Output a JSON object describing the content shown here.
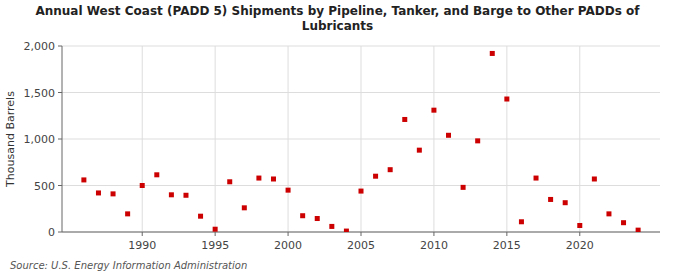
{
  "chart_data": {
    "type": "scatter",
    "title": "Annual West Coast (PADD 5) Shipments by Pipeline, Tanker, and Barge to Other PADDs of\nLubricants",
    "ylabel": "Thousand Barrels",
    "annotations": [
      "Source: U.S. Energy Information Administration"
    ],
    "x": [
      1986,
      1987,
      1988,
      1989,
      1990,
      1991,
      1992,
      1993,
      1994,
      1995,
      1996,
      1997,
      1998,
      1999,
      2000,
      2001,
      2002,
      2003,
      2004,
      2005,
      2006,
      2007,
      2008,
      2009,
      2010,
      2011,
      2012,
      2013,
      2014,
      2015,
      2016,
      2017,
      2018,
      2019,
      2020,
      2021,
      2022,
      2023,
      2024
    ],
    "values": [
      560,
      420,
      410,
      195,
      500,
      615,
      400,
      395,
      170,
      30,
      540,
      260,
      580,
      570,
      450,
      175,
      145,
      60,
      10,
      440,
      600,
      670,
      1210,
      880,
      1310,
      1040,
      480,
      980,
      1920,
      1430,
      110,
      580,
      350,
      315,
      70,
      570,
      195,
      100,
      20
    ],
    "color": "#cc0000",
    "marker": "square",
    "xlim": [
      1984.5,
      2025.5
    ],
    "xticks": [
      1990,
      1995,
      2000,
      2005,
      2010,
      2015,
      2020
    ],
    "ylim": [
      0,
      2000
    ],
    "yticks": [
      0,
      500,
      {
        "value": 1000,
        "label": "1,000"
      },
      {
        "value": 1500,
        "label": "1,500"
      },
      {
        "value": 2000,
        "label": "2,000"
      }
    ],
    "grid": true
  }
}
